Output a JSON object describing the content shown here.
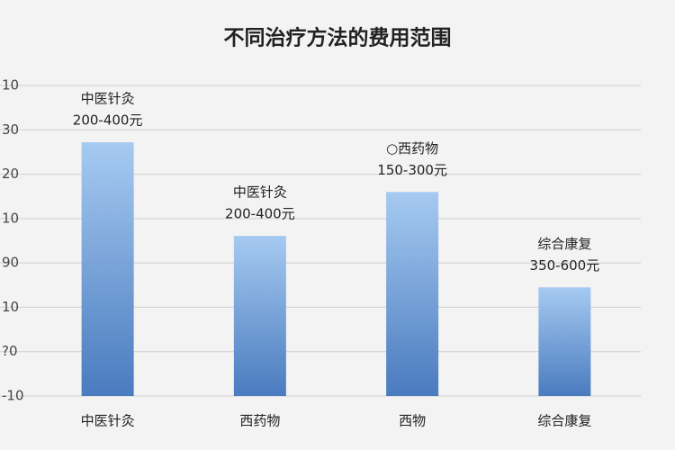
{
  "chart_data": {
    "type": "bar",
    "title": "不同治疗方法的费用范围",
    "categories": [
      "中医针灸",
      "西药物",
      "西物",
      "综合康复"
    ],
    "values": [
      5.72,
      3.61,
      4.6,
      2.45
    ],
    "annotations": [
      [
        "中医针灸",
        "200-400元"
      ],
      [
        "中医针灸",
        "200-400元"
      ],
      [
        "○西药物",
        "150-300元"
      ],
      [
        "综合康复",
        "350-600元"
      ]
    ],
    "gradient": [
      "#a6caf1",
      "#4a7bbf"
    ],
    "ylim": [
      0,
      7
    ],
    "yticks": [
      {
        "value": 0,
        "label": "-10"
      },
      {
        "value": 1,
        "label": "?0"
      },
      {
        "value": 2,
        "label": "10"
      },
      {
        "value": 3,
        "label": "90"
      },
      {
        "value": 4,
        "label": "10"
      },
      {
        "value": 5,
        "label": "20"
      },
      {
        "value": 6,
        "label": "30"
      },
      {
        "value": 7,
        "label": "10"
      }
    ],
    "grid": true
  }
}
